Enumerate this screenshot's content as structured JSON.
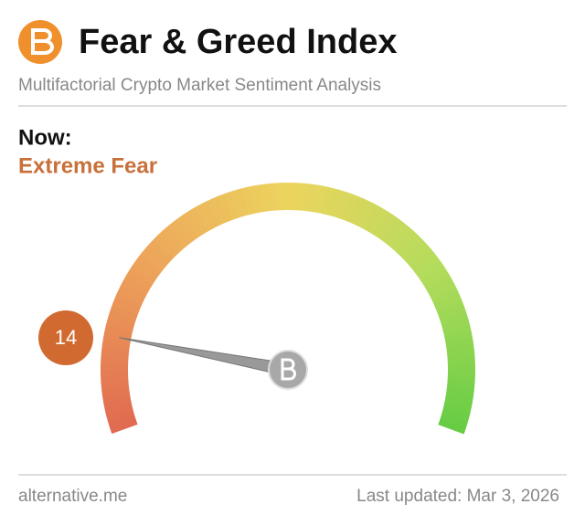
{
  "chart_data": {
    "type": "gauge",
    "title": "Fear & Greed Index",
    "subtitle": "Multifactorial Crypto Market Sentiment Analysis",
    "now_label": "Now:",
    "classification": "Extreme Fear",
    "value": 14,
    "range": [
      0,
      100
    ],
    "colors": [
      "#e06a50",
      "#eda25a",
      "#ecd45e",
      "#b4dc5c",
      "#66cc44"
    ],
    "needle_color": "#999999",
    "badge_color": "#d06a30",
    "source": "alternative.me",
    "last_updated": "Last updated: Mar 3, 2026"
  }
}
